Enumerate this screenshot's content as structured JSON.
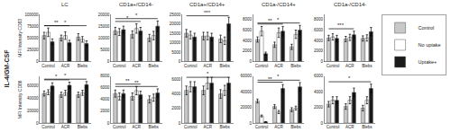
{
  "chart_data": [
    {
      "type": "bar",
      "title": "LC",
      "ylabel": "MFI Intensity CD83",
      "categories": [
        "Control",
        "ACR",
        "Blebs"
      ],
      "series": [
        {
          "name": "Control",
          "color": "#c8c8c8",
          "values": [
            55000,
            50000,
            52000
          ],
          "errors": [
            7000,
            6000,
            7000
          ]
        },
        {
          "name": "No uptake",
          "color": "#ffffff",
          "values": [
            62000,
            55000,
            47000
          ],
          "errors": [
            9000,
            8000,
            6000
          ]
        },
        {
          "name": "Uptake+",
          "color": "#1a1a1a",
          "values": [
            42000,
            40000,
            38000
          ],
          "errors": [
            6000,
            5000,
            6000
          ]
        }
      ],
      "ylim": [
        0,
        100000
      ],
      "yticks": [
        0,
        25000,
        50000,
        75000,
        100000
      ],
      "grid": false,
      "legend": "right",
      "annotations": [
        {
          "text": "IL-4/GM-CSF"
        },
        {
          "text": "**",
          "from": "Control",
          "to": "ACR"
        },
        {
          "text": "*",
          "from": "Control",
          "to": "Blebs"
        }
      ]
    },
    {
      "type": "bar",
      "title": "CD1a+/CD14-",
      "categories": [
        "Control",
        "ACR",
        "Blebs"
      ],
      "series": [
        {
          "name": "Control",
          "color": "#c8c8c8",
          "values": [
            13000,
            11500,
            10000
          ],
          "errors": [
            1500,
            1500,
            1500
          ]
        },
        {
          "name": "No uptake",
          "color": "#ffffff",
          "values": [
            12500,
            14000,
            11000
          ],
          "errors": [
            1500,
            2000,
            1800
          ]
        },
        {
          "name": "Uptake+",
          "color": "#1a1a1a",
          "values": [
            13500,
            13000,
            15000
          ],
          "errors": [
            1500,
            1500,
            2200
          ]
        }
      ],
      "ylim": [
        0,
        20000
      ],
      "yticks": [
        0,
        5000,
        10000,
        15000,
        20000
      ],
      "grid": false,
      "annotations": [
        {
          "text": "*",
          "from": "Control",
          "to": "ACR"
        },
        {
          "text": "*",
          "from": "Control",
          "to": "Blebs"
        }
      ]
    },
    {
      "type": "bar",
      "title": "CD1a+/CD14+",
      "categories": [
        "Control",
        "ACR",
        "Blebs"
      ],
      "series": [
        {
          "name": "Control",
          "color": "#c8c8c8",
          "values": [
            15000,
            13500,
            12000
          ],
          "errors": [
            2000,
            2000,
            2000
          ]
        },
        {
          "name": "No uptake",
          "color": "#ffffff",
          "values": [
            14000,
            13500,
            11000
          ],
          "errors": [
            2000,
            2000,
            2000
          ]
        },
        {
          "name": "Uptake+",
          "color": "#1a1a1a",
          "values": [
            13000,
            13000,
            20000
          ],
          "errors": [
            2000,
            2000,
            3500
          ]
        }
      ],
      "ylim": [
        0,
        25000
      ],
      "yticks": [
        0,
        5000,
        10000,
        15000,
        20000,
        25000
      ],
      "grid": false,
      "annotations": [
        {
          "text": "***",
          "from": "Control",
          "to": "Blebs"
        }
      ]
    },
    {
      "type": "bar",
      "title": "CD1a-/CD14+",
      "categories": [
        "Control",
        "ACR",
        "Blebs"
      ],
      "series": [
        {
          "name": "Control",
          "color": "#c8c8c8",
          "values": [
            4200,
            3200,
            2800
          ],
          "errors": [
            500,
            500,
            500
          ]
        },
        {
          "name": "No uptake",
          "color": "#ffffff",
          "values": [
            5800,
            5500,
            5200
          ],
          "errors": [
            900,
            900,
            800
          ]
        },
        {
          "name": "Uptake+",
          "color": "#1a1a1a",
          "values": [
            1500,
            5800,
            6000
          ],
          "errors": [
            300,
            900,
            900
          ]
        }
      ],
      "ylim": [
        0,
        9000
      ],
      "yticks": [
        0,
        2000,
        4000,
        6000,
        8000
      ],
      "grid": false,
      "annotations": [
        {
          "text": "**",
          "from": "Control",
          "to": "ACR"
        },
        {
          "text": "*",
          "from": "Control",
          "to": "Blebs"
        }
      ]
    },
    {
      "type": "bar",
      "title": "CD1a-/CD14-",
      "categories": [
        "Control",
        "ACR",
        "Blebs"
      ],
      "series": [
        {
          "name": "Control",
          "color": "#c8c8c8",
          "values": [
            4500,
            4300,
            4400
          ],
          "errors": [
            500,
            500,
            500
          ]
        },
        {
          "name": "No uptake",
          "color": "#ffffff",
          "values": [
            4700,
            4600,
            4500
          ],
          "errors": [
            600,
            600,
            600
          ]
        },
        {
          "name": "Uptake+",
          "color": "#1a1a1a",
          "values": [
            4400,
            5100,
            5700
          ],
          "errors": [
            600,
            700,
            800
          ]
        }
      ],
      "ylim": [
        0,
        9000
      ],
      "yticks": [
        0,
        2000,
        4000,
        6000,
        8000
      ],
      "grid": false,
      "annotations": [
        {
          "text": "***",
          "from": "Control",
          "to": "ACR"
        }
      ]
    },
    {
      "type": "bar",
      "ylabel": "MFI Intensity CD86",
      "categories": [
        "Control",
        "ACR",
        "Blebs"
      ],
      "series": [
        {
          "name": "Control",
          "color": "#c8c8c8",
          "values": [
            47000,
            45000,
            45000
          ],
          "errors": [
            4000,
            4000,
            4000
          ]
        },
        {
          "name": "No uptake",
          "color": "#ffffff",
          "values": [
            49000,
            48000,
            48000
          ],
          "errors": [
            4000,
            4000,
            4000
          ]
        },
        {
          "name": "Uptake+",
          "color": "#1a1a1a",
          "values": [
            59000,
            60000,
            61000
          ],
          "errors": [
            5000,
            5000,
            5000
          ]
        }
      ],
      "ylim": [
        0,
        75000
      ],
      "yticks": [
        0,
        20000,
        40000,
        60000
      ],
      "grid": false,
      "annotations": [
        {
          "text": "*",
          "from": "Control",
          "to": "ACR"
        },
        {
          "text": "*",
          "from": "Control",
          "to": "Blebs"
        }
      ]
    },
    {
      "type": "bar",
      "categories": [
        "Control",
        "ACR",
        "Blebs"
      ],
      "series": [
        {
          "name": "Control",
          "color": "#c8c8c8",
          "values": [
            5000,
            4500,
            4000
          ],
          "errors": [
            600,
            600,
            600
          ]
        },
        {
          "name": "No uptake",
          "color": "#ffffff",
          "values": [
            4500,
            5500,
            4300
          ],
          "errors": [
            600,
            700,
            600
          ]
        },
        {
          "name": "Uptake+",
          "color": "#1a1a1a",
          "values": [
            5000,
            4800,
            5100
          ],
          "errors": [
            600,
            600,
            700
          ]
        }
      ],
      "ylim": [
        0,
        8000
      ],
      "yticks": [
        0,
        2000,
        4000,
        6000,
        8000
      ],
      "grid": false,
      "annotations": [
        {
          "text": "**",
          "from": "Control",
          "to": "ACR"
        },
        {
          "text": "**",
          "from": "Control",
          "to": "Blebs"
        }
      ]
    },
    {
      "type": "bar",
      "categories": [
        "Control",
        "ACR",
        "Blebs"
      ],
      "series": [
        {
          "name": "Control",
          "color": "#c8c8c8",
          "values": [
            4500,
            4500,
            4000
          ],
          "errors": [
            600,
            600,
            600
          ]
        },
        {
          "name": "No uptake",
          "color": "#ffffff",
          "values": [
            5000,
            5500,
            4500
          ],
          "errors": [
            700,
            800,
            700
          ]
        },
        {
          "name": "Uptake+",
          "color": "#1a1a1a",
          "values": [
            5000,
            5500,
            5500
          ],
          "errors": [
            700,
            800,
            800
          ]
        }
      ],
      "ylim": [
        0,
        6500
      ],
      "yticks": [
        0,
        2000,
        4000,
        6000
      ],
      "grid": false,
      "annotations": [
        {
          "text": "*",
          "from": "Control",
          "to": "Blebs"
        }
      ]
    },
    {
      "type": "bar",
      "categories": [
        "Control",
        "ACR",
        "Blebs"
      ],
      "series": [
        {
          "name": "Control",
          "color": "#c8c8c8",
          "values": [
            28000,
            21000,
            17000
          ],
          "errors": [
            2500,
            2500,
            2500
          ]
        },
        {
          "name": "No uptake",
          "color": "#ffffff",
          "values": [
            9000,
            14000,
            19000
          ],
          "errors": [
            1200,
            2000,
            2500
          ]
        },
        {
          "name": "Uptake+",
          "color": "#1a1a1a",
          "values": [
            1500,
            44000,
            46000
          ],
          "errors": [
            300,
            5000,
            5500
          ]
        }
      ],
      "ylim": [
        0,
        60000
      ],
      "yticks": [
        0,
        20000,
        40000,
        60000
      ],
      "grid": false,
      "annotations": [
        {
          "text": "**",
          "from": "Control",
          "to": "ACR"
        },
        {
          "text": "*",
          "from": "Control",
          "to": "Blebs"
        }
      ]
    },
    {
      "type": "bar",
      "categories": [
        "Control",
        "ACR",
        "Blebs"
      ],
      "series": [
        {
          "name": "Control",
          "color": "#c8c8c8",
          "values": [
            2400,
            2100,
            1900
          ],
          "errors": [
            350,
            350,
            350
          ]
        },
        {
          "name": "No uptake",
          "color": "#ffffff",
          "values": [
            2900,
            2900,
            2900
          ],
          "errors": [
            450,
            450,
            450
          ]
        },
        {
          "name": "Uptake+",
          "color": "#1a1a1a",
          "values": [
            2900,
            3900,
            4400
          ],
          "errors": [
            450,
            550,
            550
          ]
        }
      ],
      "ylim": [
        0,
        6000
      ],
      "yticks": [
        0,
        2000,
        4000,
        6000
      ],
      "grid": false,
      "annotations": [
        {
          "text": "*",
          "from": "Control",
          "to": "Blebs"
        }
      ]
    }
  ]
}
